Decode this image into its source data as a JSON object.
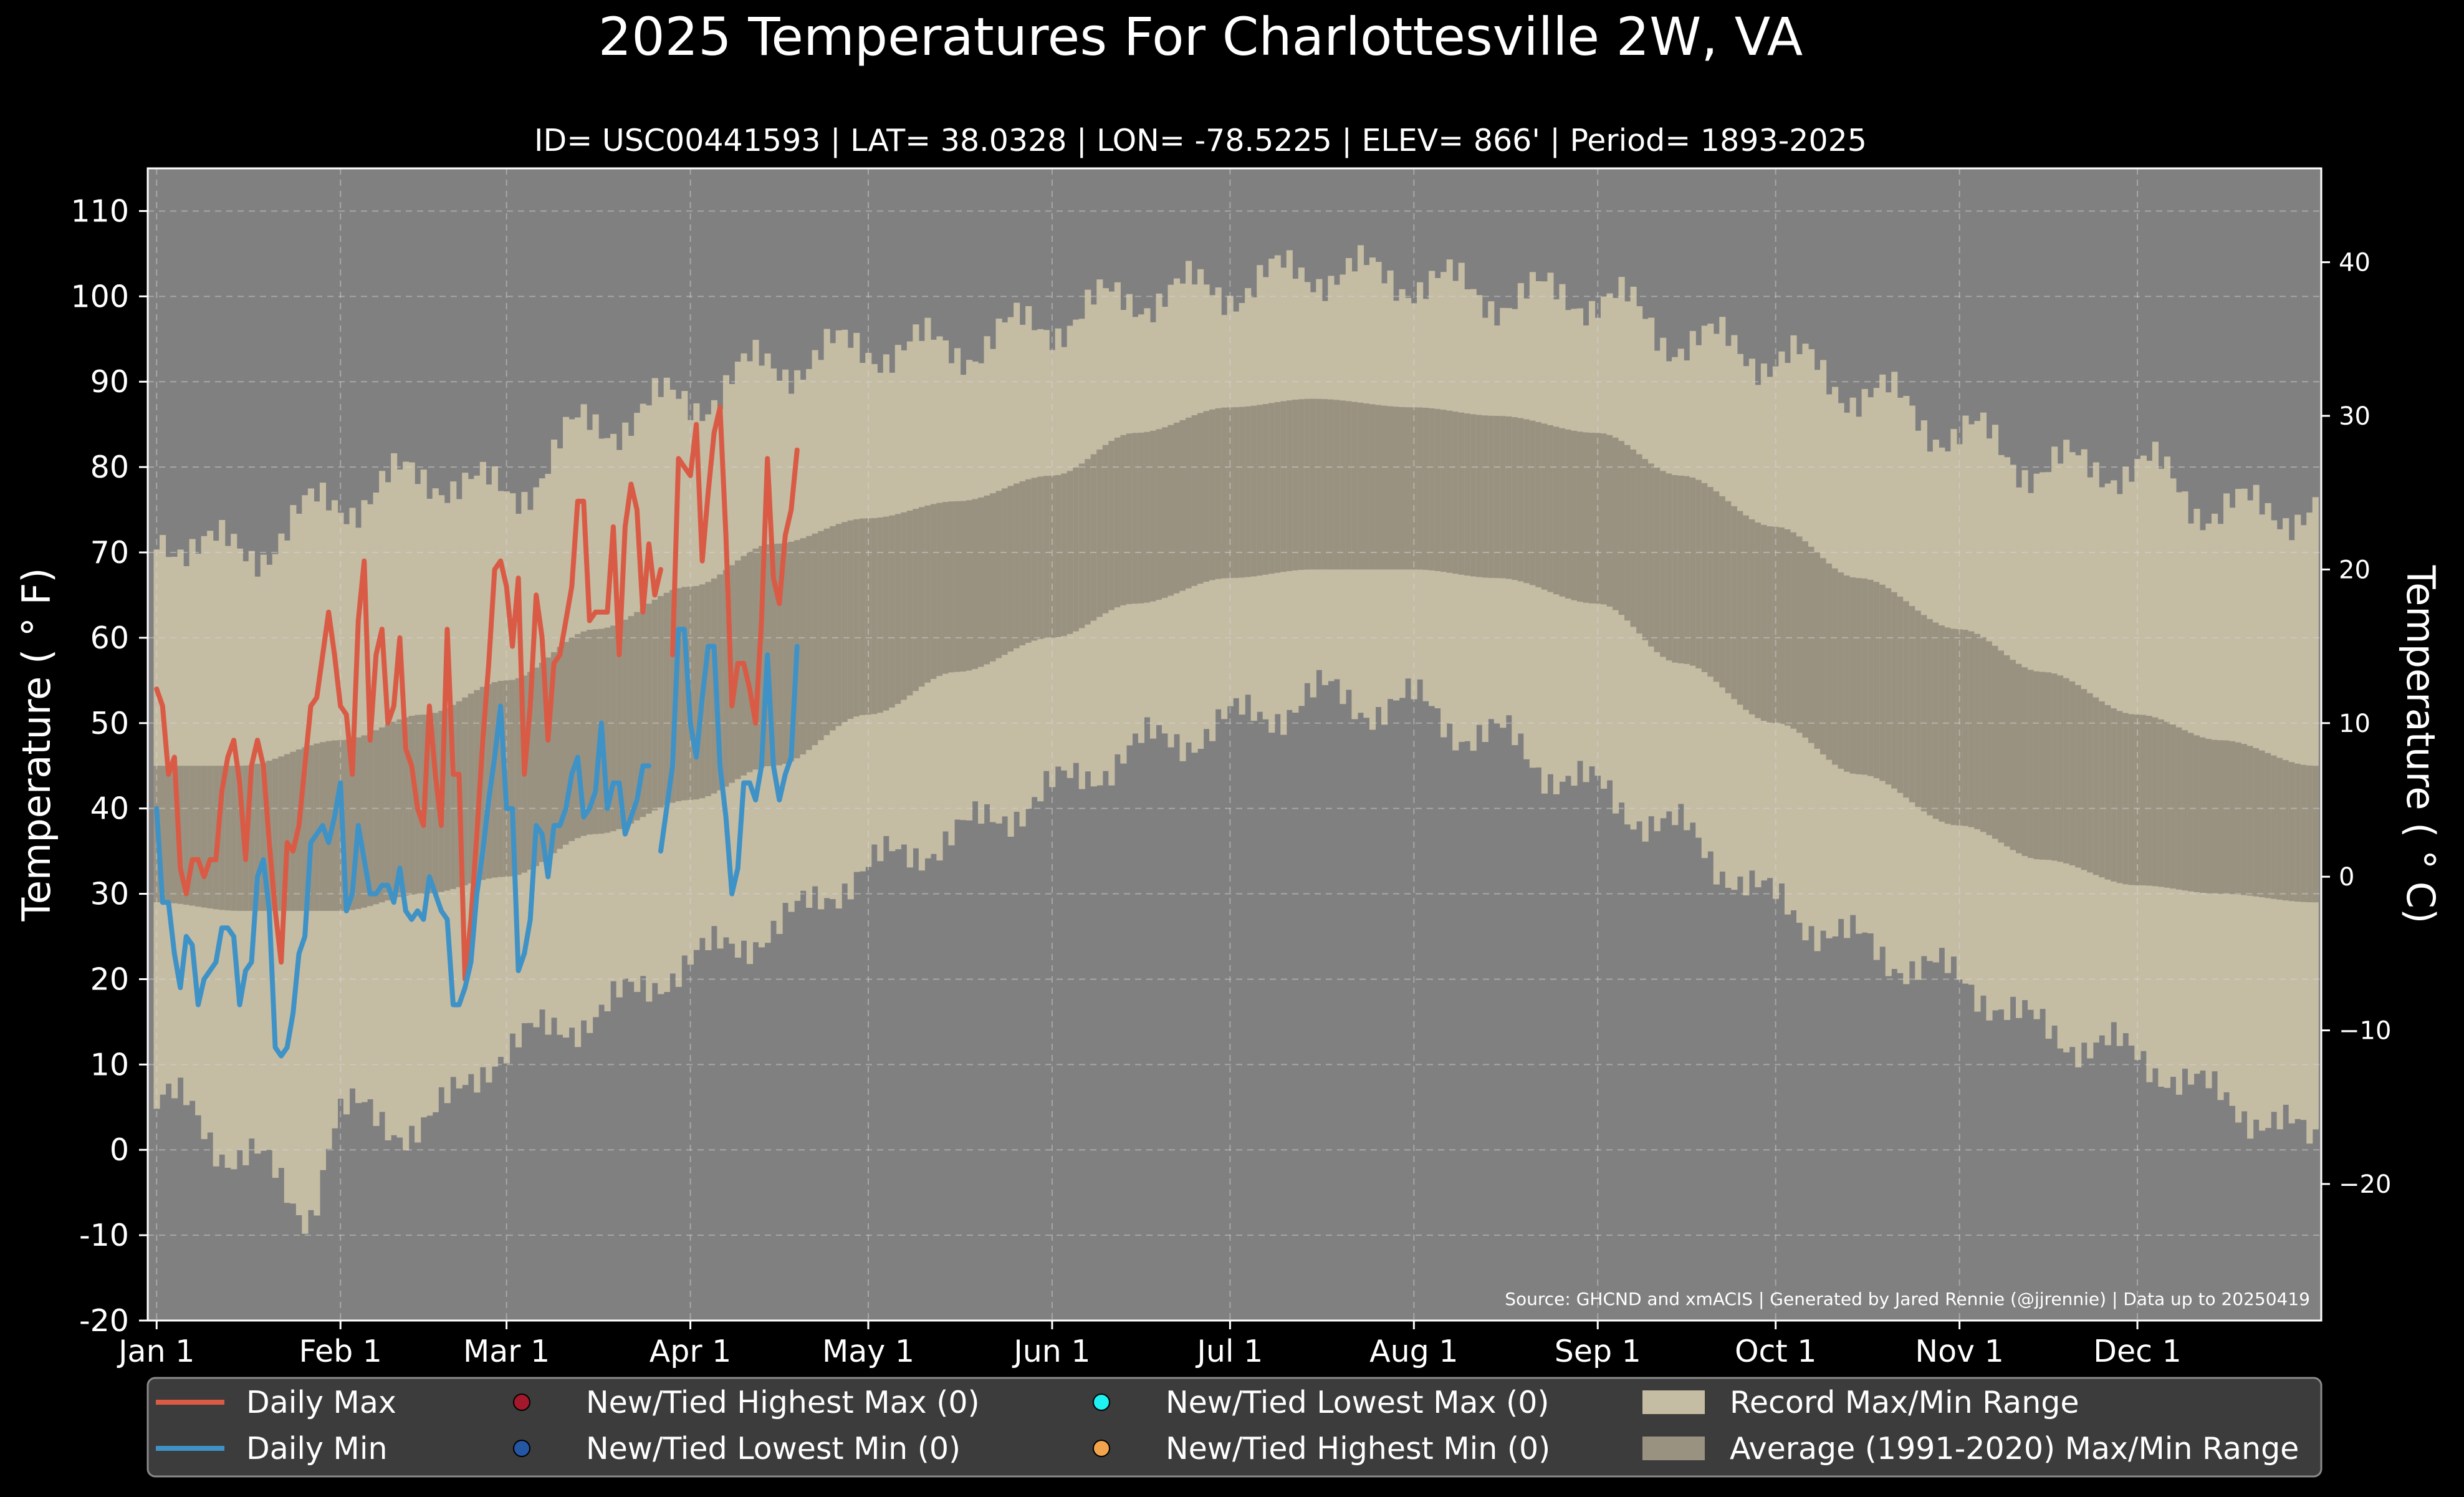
{
  "chart_data": {
    "type": "line",
    "title": "2025 Temperatures For Charlottesville 2W, VA",
    "subtitle": "ID= USC00441593 | LAT= 38.0328 | LON= -78.5225 | ELEV= 866' | Period= 1893-2025",
    "ylabel": "Temperature ( ° F)",
    "ylabel_right": "Temperature ( ° C)",
    "source_note": "Source: GHCND and xmACIS | Generated by Jared Rennie (@jjrennie) | Data up to 20250419",
    "ylim": [
      -20,
      115
    ],
    "y_ticks": [
      "-20",
      "-10",
      "0",
      "10",
      "20",
      "30",
      "40",
      "50",
      "60",
      "70",
      "80",
      "90",
      "100",
      "110"
    ],
    "y2_ticks": [
      "−20",
      "−10",
      "0",
      "10",
      "20",
      "30",
      "40"
    ],
    "x_tick_labels": [
      "Jan 1",
      "Feb 1",
      "Mar 1",
      "Apr 1",
      "May 1",
      "Jun 1",
      "Jul 1",
      "Aug 1",
      "Sep 1",
      "Oct 1",
      "Nov 1",
      "Dec 1"
    ],
    "x_tick_days": [
      1,
      32,
      60,
      91,
      121,
      152,
      182,
      213,
      244,
      274,
      305,
      335
    ],
    "grid": true,
    "legend_position": "bottom",
    "legend": [
      {
        "label": "Daily Max",
        "kind": "line",
        "color": "#d95b45"
      },
      {
        "label": "Daily Min",
        "kind": "line",
        "color": "#3f92c6"
      },
      {
        "label": "New/Tied Highest Max (0)",
        "kind": "dot",
        "color": "#a3182b"
      },
      {
        "label": "New/Tied Lowest Min (0)",
        "kind": "dot",
        "color": "#2456a4"
      },
      {
        "label": "New/Tied Lowest Max (0)",
        "kind": "dot",
        "color": "#1ff2f2"
      },
      {
        "label": "New/Tied Highest Min (0)",
        "kind": "dot",
        "color": "#f2a44c"
      },
      {
        "label": "Record Max/Min Range",
        "kind": "patch",
        "color": "#c5bca4"
      },
      {
        "label": "Average (1991-2020) Max/Min Range",
        "kind": "patch",
        "color": "#9a9281"
      }
    ],
    "colors": {
      "record_range": "#c5bca4",
      "normal_range": "#9a9281",
      "plot_bg": "#808080"
    },
    "record_max_anchors": [
      [
        1,
        72
      ],
      [
        15,
        70
      ],
      [
        32,
        76
      ],
      [
        46,
        79
      ],
      [
        60,
        77
      ],
      [
        75,
        85
      ],
      [
        91,
        88
      ],
      [
        105,
        92
      ],
      [
        121,
        94
      ],
      [
        136,
        94
      ],
      [
        152,
        97
      ],
      [
        166,
        100
      ],
      [
        182,
        101
      ],
      [
        196,
        103
      ],
      [
        213,
        102
      ],
      [
        227,
        100
      ],
      [
        244,
        100
      ],
      [
        258,
        95
      ],
      [
        274,
        93
      ],
      [
        288,
        89
      ],
      [
        305,
        84
      ],
      [
        319,
        80
      ],
      [
        335,
        80
      ],
      [
        349,
        75
      ],
      [
        365,
        75
      ]
    ],
    "record_min_anchors": [
      [
        1,
        6
      ],
      [
        15,
        0
      ],
      [
        26,
        -7
      ],
      [
        32,
        4
      ],
      [
        46,
        3
      ],
      [
        60,
        12
      ],
      [
        75,
        16
      ],
      [
        91,
        22
      ],
      [
        105,
        26
      ],
      [
        121,
        33
      ],
      [
        136,
        37
      ],
      [
        152,
        42
      ],
      [
        166,
        47
      ],
      [
        182,
        50
      ],
      [
        196,
        53
      ],
      [
        213,
        52
      ],
      [
        227,
        48
      ],
      [
        244,
        42
      ],
      [
        258,
        37
      ],
      [
        274,
        29
      ],
      [
        288,
        24
      ],
      [
        305,
        20
      ],
      [
        319,
        14
      ],
      [
        335,
        11
      ],
      [
        349,
        6
      ],
      [
        365,
        1
      ]
    ],
    "normal_max_anchors": [
      [
        1,
        45
      ],
      [
        15,
        45
      ],
      [
        32,
        48
      ],
      [
        46,
        51
      ],
      [
        60,
        55
      ],
      [
        75,
        61
      ],
      [
        91,
        66
      ],
      [
        105,
        71
      ],
      [
        121,
        74
      ],
      [
        136,
        76
      ],
      [
        152,
        79
      ],
      [
        166,
        84
      ],
      [
        182,
        87
      ],
      [
        196,
        88
      ],
      [
        213,
        87
      ],
      [
        227,
        86
      ],
      [
        244,
        84
      ],
      [
        258,
        79
      ],
      [
        274,
        73
      ],
      [
        288,
        67
      ],
      [
        305,
        61
      ],
      [
        319,
        56
      ],
      [
        335,
        51
      ],
      [
        349,
        48
      ],
      [
        365,
        45
      ]
    ],
    "normal_min_anchors": [
      [
        1,
        29
      ],
      [
        15,
        28
      ],
      [
        32,
        28
      ],
      [
        46,
        30
      ],
      [
        60,
        32
      ],
      [
        75,
        37
      ],
      [
        91,
        41
      ],
      [
        105,
        45
      ],
      [
        121,
        51
      ],
      [
        136,
        56
      ],
      [
        152,
        60
      ],
      [
        166,
        64
      ],
      [
        182,
        67
      ],
      [
        196,
        68
      ],
      [
        213,
        68
      ],
      [
        227,
        67
      ],
      [
        244,
        64
      ],
      [
        258,
        57
      ],
      [
        274,
        50
      ],
      [
        288,
        44
      ],
      [
        305,
        38
      ],
      [
        319,
        34
      ],
      [
        335,
        31
      ],
      [
        349,
        30
      ],
      [
        365,
        29
      ]
    ],
    "x": [
      1,
      2,
      3,
      4,
      5,
      6,
      7,
      8,
      9,
      10,
      11,
      12,
      13,
      14,
      15,
      16,
      17,
      18,
      19,
      20,
      21,
      22,
      23,
      24,
      25,
      26,
      27,
      28,
      29,
      30,
      31,
      32,
      33,
      34,
      35,
      36,
      37,
      38,
      39,
      40,
      41,
      42,
      43,
      44,
      45,
      46,
      47,
      48,
      49,
      50,
      51,
      52,
      53,
      54,
      55,
      56,
      57,
      58,
      59,
      60,
      61,
      62,
      63,
      64,
      65,
      66,
      67,
      68,
      69,
      70,
      71,
      72,
      73,
      74,
      75,
      76,
      77,
      78,
      79,
      80,
      81,
      82,
      83,
      84,
      85,
      86,
      87,
      88,
      89,
      90,
      91,
      92,
      93,
      94,
      95,
      96,
      97,
      98,
      99,
      100,
      101,
      102,
      103,
      104,
      105,
      106,
      107,
      108,
      109
    ],
    "series": [
      {
        "name": "Daily Max",
        "color": "#d95b45",
        "values": [
          54,
          52,
          44,
          46,
          33,
          30,
          34,
          34,
          32,
          34,
          34,
          42,
          46,
          48,
          43,
          34,
          45,
          48,
          45,
          36,
          28,
          22,
          36,
          35,
          38,
          45,
          52,
          53,
          58,
          63,
          58,
          52,
          51,
          44,
          62,
          69,
          48,
          58,
          61,
          50,
          52,
          60,
          47,
          45,
          40,
          38,
          52,
          44,
          38,
          61,
          44,
          44,
          20,
          27,
          37,
          48,
          57,
          68,
          69,
          66,
          59,
          67,
          44,
          52,
          65,
          60,
          48,
          57,
          58,
          62,
          66,
          76,
          76,
          62,
          63,
          63,
          63,
          73,
          58,
          73,
          78,
          75,
          63,
          71,
          65,
          68,
          null,
          58,
          81,
          80,
          79,
          85,
          69,
          77,
          84,
          87,
          72,
          52,
          57,
          57,
          54,
          50,
          62,
          81,
          67,
          64,
          72,
          75,
          82
        ]
      },
      {
        "name": "Daily Min",
        "color": "#3f92c6",
        "values": [
          40,
          29,
          29,
          23,
          19,
          25,
          24,
          17,
          20,
          21,
          22,
          26,
          26,
          25,
          17,
          21,
          22,
          32,
          34,
          28,
          12,
          11,
          12,
          16,
          23,
          25,
          36,
          37,
          38,
          36,
          39,
          43,
          28,
          30,
          38,
          34,
          30,
          30,
          31,
          31,
          29,
          33,
          28,
          27,
          28,
          27,
          32,
          30,
          28,
          27,
          17,
          17,
          19,
          22,
          30,
          35,
          41,
          46,
          52,
          40,
          40,
          21,
          23,
          27,
          38,
          37,
          32,
          38,
          38,
          40,
          44,
          46,
          39,
          40,
          42,
          50,
          40,
          43,
          43,
          37,
          39,
          41,
          45,
          45,
          null,
          35,
          40,
          45,
          61,
          61,
          50,
          46,
          53,
          59,
          59,
          45,
          39,
          30,
          33,
          43,
          43,
          41,
          45,
          58,
          45,
          41,
          44,
          46,
          59
        ]
      }
    ]
  }
}
